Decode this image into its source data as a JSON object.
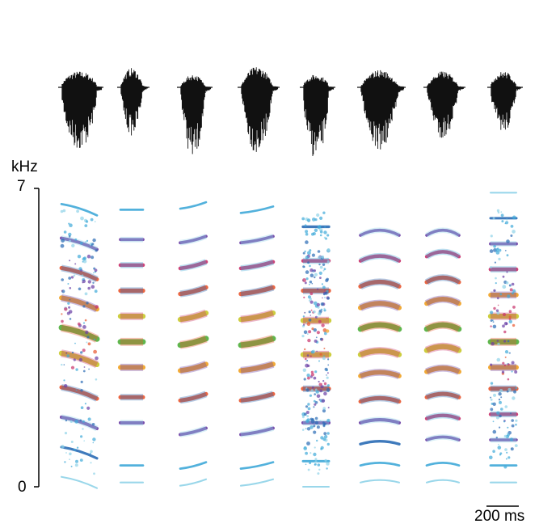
{
  "axis": {
    "y_unit": "kHz",
    "y_max_label": "7",
    "y_min_label": "0",
    "y_range_khz": [
      0,
      7
    ]
  },
  "scale_bar": {
    "label": "200 ms",
    "duration_ms": 200
  },
  "colors": {
    "background": "#ffffff",
    "waveform": "#111111",
    "spectrogram_levels": [
      "#8fd3e8",
      "#3fa9d8",
      "#2a6bb5",
      "#6a3fa5",
      "#c8306a",
      "#e8552d",
      "#f0a020",
      "#c8c82a",
      "#4fae3a"
    ]
  },
  "calls": [
    {
      "id": 1,
      "harmonics_khz": [
        0.1,
        0.8,
        1.5,
        2.2,
        3.0,
        3.6,
        4.3,
        5.0,
        5.7,
        6.5
      ],
      "shape": "descending-fm"
    },
    {
      "id": 2,
      "harmonics_khz": [
        0.1,
        0.5,
        1.5,
        2.1,
        2.8,
        3.4,
        4.0,
        4.6,
        5.2,
        5.8,
        6.5
      ],
      "shape": "flat"
    },
    {
      "id": 3,
      "harmonics_khz": [
        0.1,
        0.5,
        1.3,
        2.1,
        2.8,
        3.4,
        4.0,
        4.6,
        5.2,
        5.8,
        6.6
      ],
      "shape": "rising"
    },
    {
      "id": 4,
      "harmonics_khz": [
        0.1,
        0.5,
        1.3,
        2.1,
        2.8,
        3.4,
        4.0,
        4.6,
        5.2,
        5.8,
        6.5
      ],
      "shape": "rising"
    },
    {
      "id": 5,
      "harmonics_khz": [
        0.0,
        0.6,
        1.5,
        2.3,
        3.1,
        3.9,
        4.6,
        5.3,
        6.1
      ],
      "shape": "noisy"
    },
    {
      "id": 6,
      "harmonics_khz": [
        0.1,
        0.5,
        1.0,
        1.5,
        2.0,
        2.6,
        3.1,
        3.7,
        4.2,
        4.7,
        5.3,
        5.9
      ],
      "shape": "arched"
    },
    {
      "id": 7,
      "harmonics_khz": [
        0.1,
        0.5,
        1.1,
        1.6,
        2.1,
        2.7,
        3.2,
        3.7,
        4.3,
        4.8,
        5.4,
        5.9
      ],
      "shape": "arched"
    },
    {
      "id": 8,
      "harmonics_khz": [
        0.1,
        0.5,
        1.1,
        1.7,
        2.3,
        2.8,
        3.4,
        4.0,
        4.5,
        5.1,
        5.7,
        6.3,
        6.9
      ],
      "shape": "mixed"
    }
  ]
}
